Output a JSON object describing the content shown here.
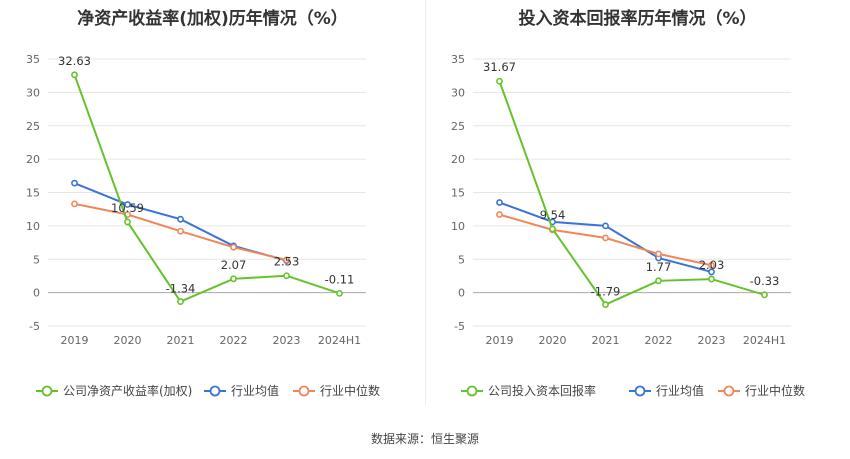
{
  "colors": {
    "company": "#66c22c",
    "industry_avg": "#3a74d6",
    "industry_median": "#f0875a",
    "grid": "#e6e6e6",
    "axis": "#aaaaaa"
  },
  "source": "数据来源：恒生聚源",
  "chart_data": [
    {
      "type": "line",
      "title": "净资产收益率(加权)历年情况（%）",
      "categories": [
        "2019",
        "2020",
        "2021",
        "2022",
        "2023",
        "2024H1"
      ],
      "ylim": [
        -5,
        35
      ],
      "yticks": [
        -5,
        0,
        5,
        10,
        15,
        20,
        25,
        30,
        35
      ],
      "grid": true,
      "legend_position": "bottom",
      "series": [
        {
          "name": "公司净资产收益率(加权)",
          "color_key": "company",
          "values": [
            32.63,
            10.59,
            -1.34,
            2.07,
            2.53,
            -0.11
          ],
          "labels": [
            "32.63",
            "10.59",
            "-1.34",
            "2.07",
            "2.53",
            "-0.11"
          ]
        },
        {
          "name": "行业均值",
          "color_key": "industry_avg",
          "values": [
            16.4,
            13.2,
            11.0,
            7.0,
            4.8,
            null
          ]
        },
        {
          "name": "行业中位数",
          "color_key": "industry_median",
          "values": [
            13.3,
            11.7,
            9.2,
            6.8,
            4.9,
            null
          ]
        }
      ]
    },
    {
      "type": "line",
      "title": "投入资本回报率历年情况（%）",
      "categories": [
        "2019",
        "2020",
        "2021",
        "2022",
        "2023",
        "2024H1"
      ],
      "ylim": [
        -5,
        35
      ],
      "yticks": [
        -5,
        0,
        5,
        10,
        15,
        20,
        25,
        30,
        35
      ],
      "grid": true,
      "legend_position": "bottom",
      "series": [
        {
          "name": "公司投入资本回报率",
          "color_key": "company",
          "values": [
            31.67,
            9.54,
            -1.79,
            1.77,
            2.03,
            -0.33
          ],
          "labels": [
            "31.67",
            "9.54",
            "-1.79",
            "1.77",
            "2.03",
            "-0.33"
          ]
        },
        {
          "name": "行业均值",
          "color_key": "industry_avg",
          "values": [
            13.5,
            10.6,
            10.0,
            5.2,
            3.1,
            null
          ]
        },
        {
          "name": "行业中位数",
          "color_key": "industry_median",
          "values": [
            11.7,
            9.4,
            8.2,
            5.8,
            4.1,
            null
          ]
        }
      ]
    }
  ]
}
